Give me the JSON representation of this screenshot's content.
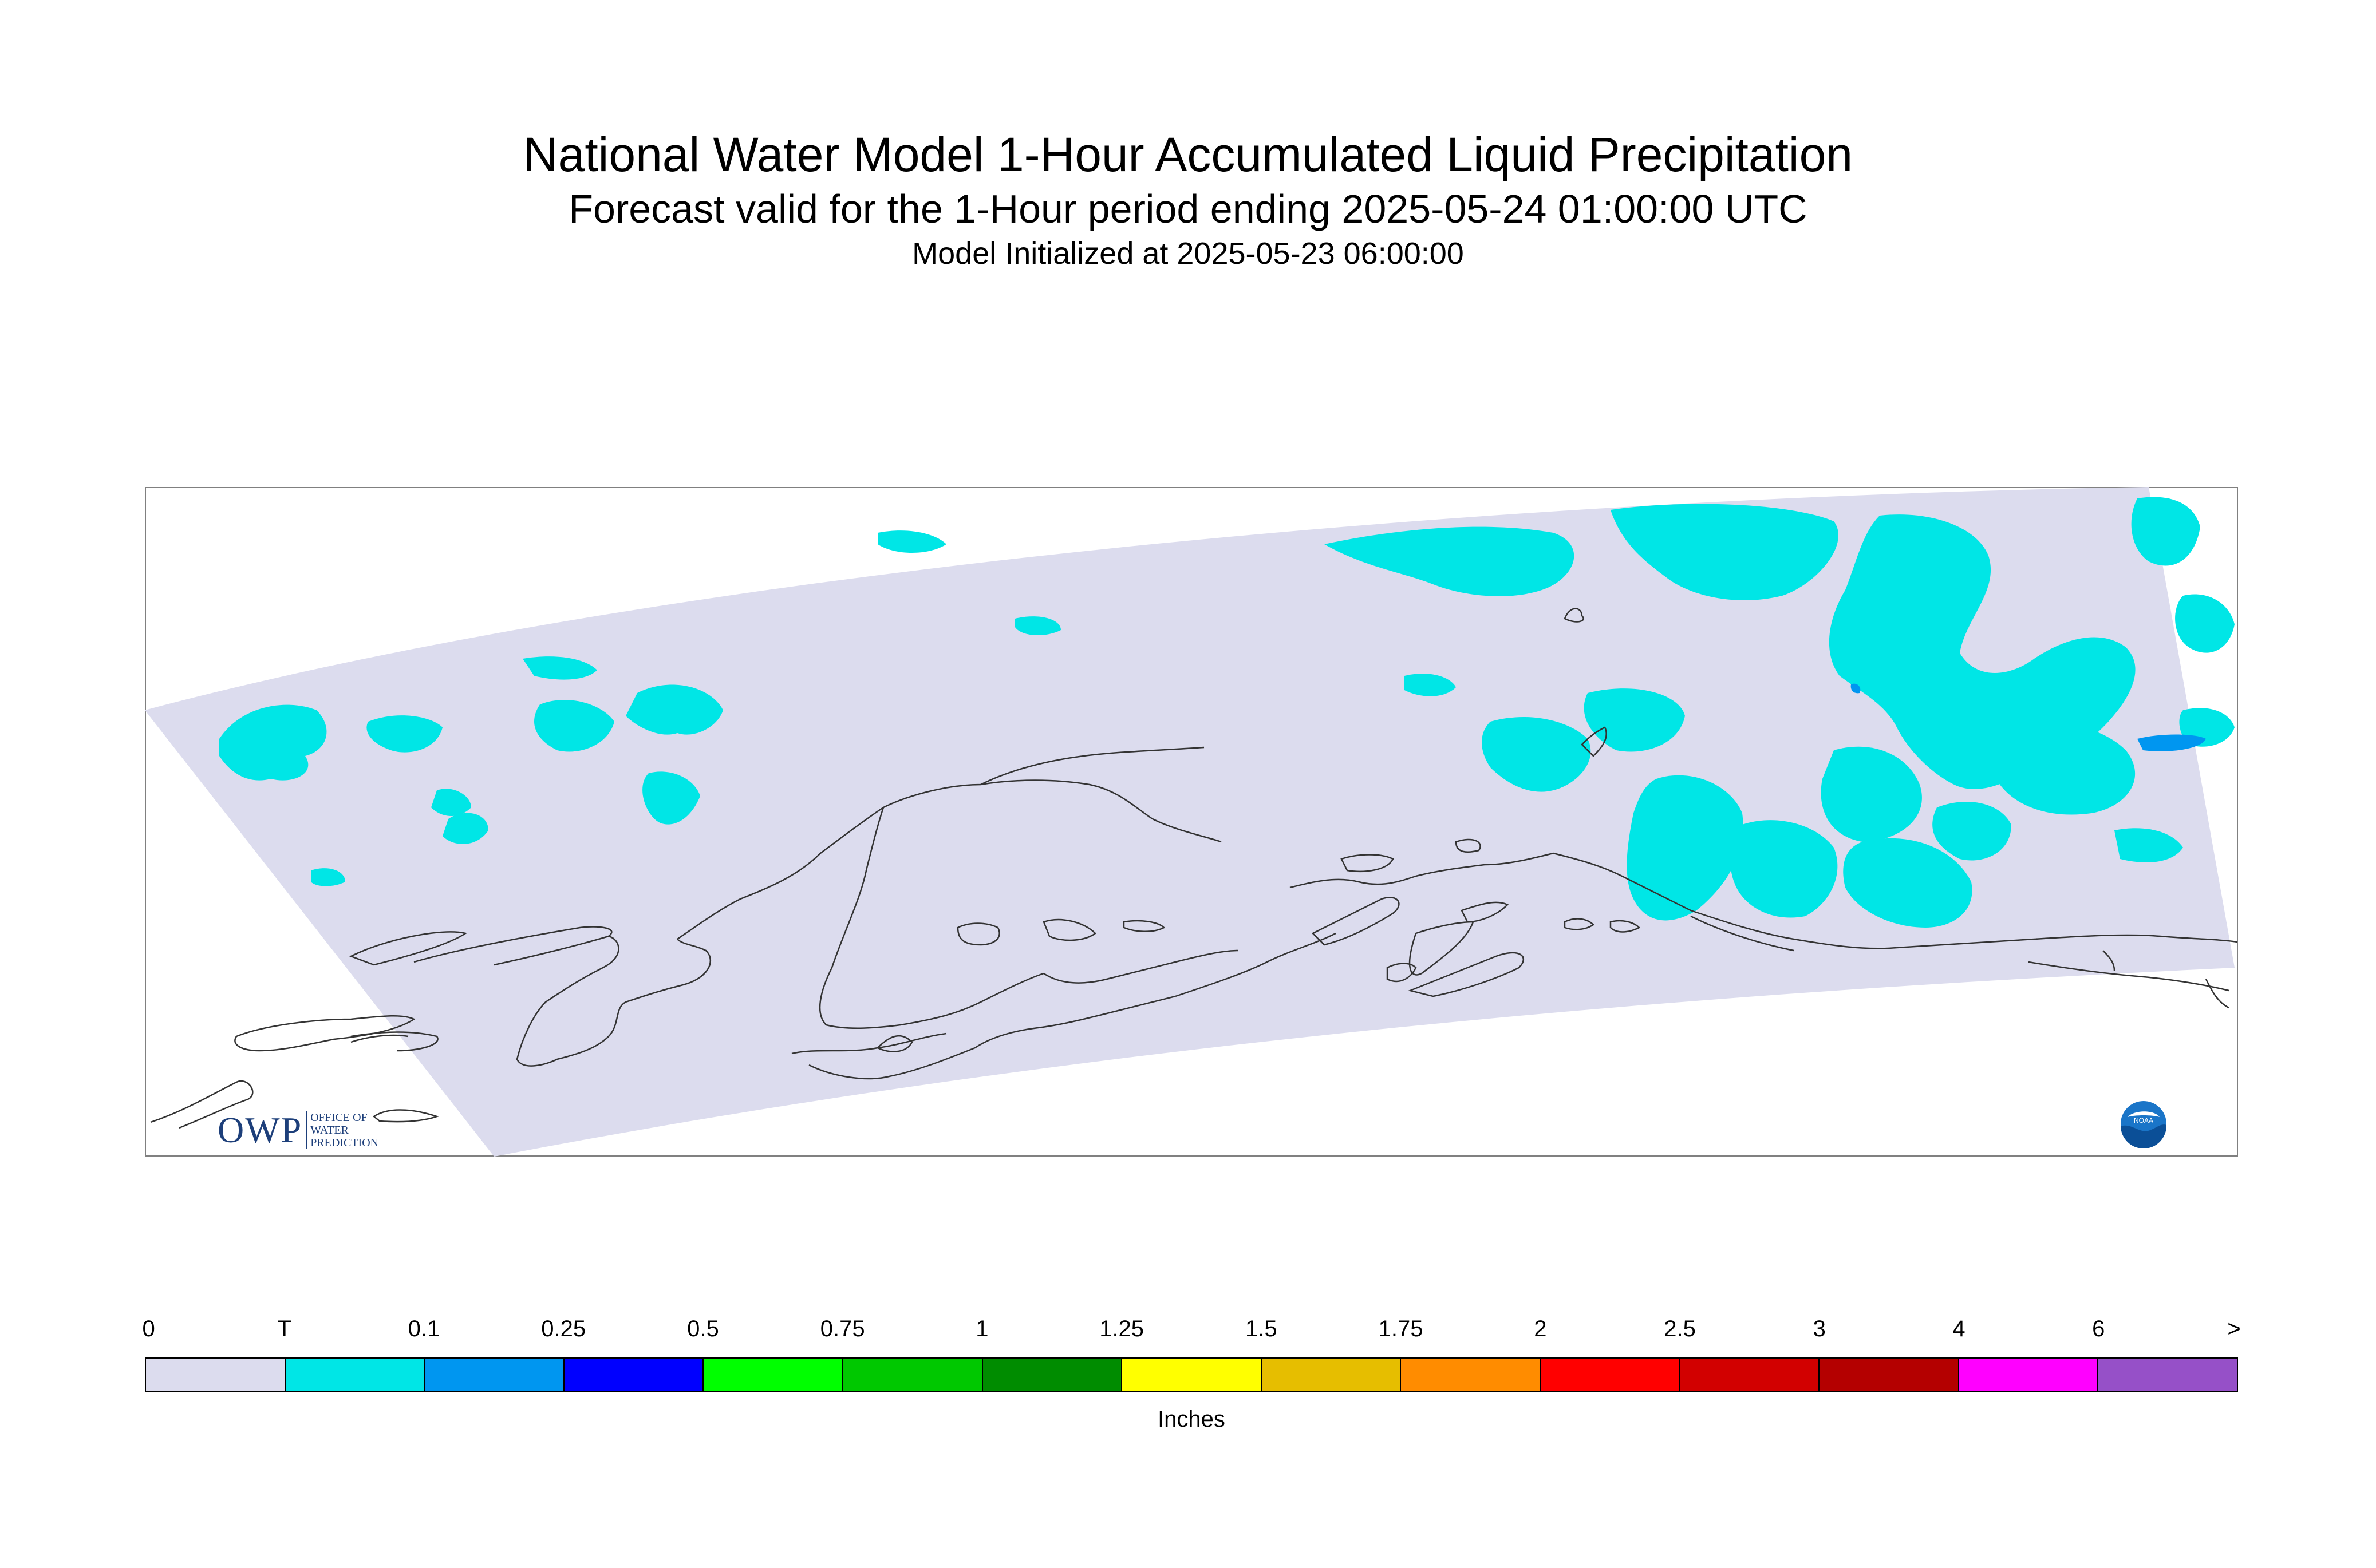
{
  "title": {
    "line1": "National Water Model 1-Hour Accumulated Liquid Precipitation",
    "line2": "Forecast valid for the 1-Hour period ending 2025-05-24 01:00:00 UTC",
    "line3": "Model Initialized at 2025-05-23 06:00:00"
  },
  "map": {
    "region_fill_color": "#dcdcee",
    "precip_trace_color": "#00e6e6",
    "precip_01_color": "#0096f0",
    "coastline_color": "#333333"
  },
  "logos": {
    "owp_mark": "OWP",
    "owp_text": [
      "OFFICE OF",
      "WATER",
      "PREDICTION"
    ],
    "noaa_text": "NOAA"
  },
  "legend": {
    "labels": [
      "0",
      "T",
      "0.1",
      "0.25",
      "0.5",
      "0.75",
      "1",
      "1.25",
      "1.5",
      "1.75",
      "2",
      "2.5",
      "3",
      "4",
      "6",
      ">"
    ],
    "colors": [
      "#dcdcee",
      "#00e6e6",
      "#0096f0",
      "#0000ff",
      "#00ff00",
      "#00c800",
      "#008c00",
      "#ffff00",
      "#e6be00",
      "#ff8c00",
      "#ff0000",
      "#d20000",
      "#b40000",
      "#ff00ff",
      "#9650c8"
    ],
    "units": "Inches"
  }
}
